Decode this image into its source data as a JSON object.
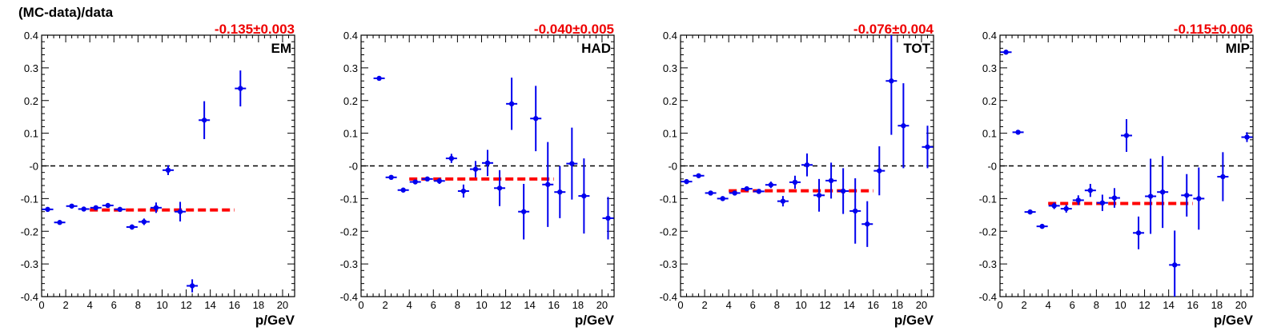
{
  "figure": {
    "ylabel": "(MC-data)/data",
    "xlabel": "p/GeV",
    "xlim": [
      0,
      21
    ],
    "ylim": [
      -0.4,
      0.4
    ],
    "xticks": [
      0,
      2,
      4,
      6,
      8,
      10,
      12,
      14,
      16,
      18,
      20
    ],
    "yticks": [
      -0.4,
      -0.3,
      -0.2,
      -0.1,
      0,
      0.1,
      0.2,
      0.3,
      0.4
    ],
    "ytick_labels": [
      "-0.4",
      "-0.3",
      "-0.2",
      "-0.1",
      "-0",
      "0.1",
      "0.2",
      "0.3",
      "0.4"
    ],
    "colors": {
      "points": "#0000ee",
      "fit": "#ff0000",
      "fit_label": "#ee0000",
      "zero_line": "#000000"
    }
  },
  "chart_data": [
    {
      "type": "scatter",
      "panel_label": "EM",
      "fit_label": "-0.135±0.003",
      "fit": {
        "value": -0.135,
        "x_range": [
          4,
          16
        ]
      },
      "x": [
        0.5,
        1.5,
        2.5,
        3.5,
        4.5,
        5.5,
        6.5,
        7.5,
        8.5,
        9.5,
        10.5,
        11.5,
        12.5,
        13.5,
        16.5
      ],
      "y": [
        -0.133,
        -0.173,
        -0.123,
        -0.132,
        -0.128,
        -0.121,
        -0.133,
        -0.187,
        -0.171,
        -0.128,
        -0.013,
        -0.14,
        -0.367,
        0.14,
        0.237
      ],
      "yerr": [
        0.003,
        0.004,
        0.003,
        0.003,
        0.004,
        0.005,
        0.006,
        0.008,
        0.01,
        0.016,
        0.015,
        0.03,
        0.02,
        0.058,
        0.055
      ]
    },
    {
      "type": "scatter",
      "panel_label": "HAD",
      "fit_label": "-0.040±0.005",
      "fit": {
        "value": -0.04,
        "x_range": [
          4,
          16
        ]
      },
      "x": [
        1.5,
        2.5,
        3.5,
        4.5,
        5.5,
        6.5,
        7.5,
        8.5,
        9.5,
        10.5,
        11.5,
        12.5,
        13.5,
        14.5,
        15.5,
        16.5,
        17.5,
        18.5,
        20.5
      ],
      "y": [
        0.268,
        -0.035,
        -0.074,
        -0.049,
        -0.04,
        -0.046,
        0.023,
        -0.077,
        -0.01,
        0.009,
        -0.068,
        0.19,
        -0.14,
        0.145,
        -0.057,
        -0.08,
        0.007,
        -0.092,
        -0.16
      ],
      "yerr": [
        0.004,
        0.004,
        0.005,
        0.006,
        0.007,
        0.009,
        0.014,
        0.02,
        0.025,
        0.04,
        0.055,
        0.08,
        0.085,
        0.1,
        0.13,
        0.08,
        0.11,
        0.115,
        0.065
      ]
    },
    {
      "type": "scatter",
      "panel_label": "TOT",
      "fit_label": "-0.076±0.004",
      "fit": {
        "value": -0.076,
        "x_range": [
          4,
          16
        ]
      },
      "x": [
        0.5,
        1.5,
        2.5,
        3.5,
        4.5,
        5.5,
        6.5,
        7.5,
        8.5,
        9.5,
        10.5,
        11.5,
        12.5,
        13.5,
        14.5,
        15.5,
        16.5,
        17.5,
        18.5,
        20.5
      ],
      "y": [
        -0.048,
        -0.03,
        -0.083,
        -0.1,
        -0.083,
        -0.07,
        -0.078,
        -0.058,
        -0.108,
        -0.05,
        0.003,
        -0.09,
        -0.045,
        -0.077,
        -0.138,
        -0.178,
        -0.015,
        0.26,
        0.123,
        0.058
      ],
      "yerr": [
        0.003,
        0.003,
        0.004,
        0.004,
        0.005,
        0.006,
        0.007,
        0.01,
        0.016,
        0.02,
        0.035,
        0.05,
        0.055,
        0.07,
        0.1,
        0.07,
        0.075,
        0.165,
        0.13,
        0.065
      ]
    },
    {
      "type": "scatter",
      "panel_label": "MIP",
      "fit_label": "-0.115±0.006",
      "fit": {
        "value": -0.115,
        "x_range": [
          4,
          16
        ]
      },
      "x": [
        0.5,
        1.5,
        2.5,
        3.5,
        4.5,
        5.5,
        6.5,
        7.5,
        8.5,
        9.5,
        10.5,
        11.5,
        12.5,
        13.5,
        14.5,
        15.5,
        16.5,
        18.5,
        20.5
      ],
      "y": [
        0.348,
        0.103,
        -0.141,
        -0.185,
        -0.122,
        -0.131,
        -0.105,
        -0.075,
        -0.113,
        -0.098,
        0.093,
        -0.205,
        -0.093,
        -0.08,
        -0.303,
        -0.09,
        -0.1,
        -0.033,
        0.088
      ],
      "yerr": [
        0.005,
        0.004,
        0.005,
        0.006,
        0.01,
        0.012,
        0.015,
        0.02,
        0.025,
        0.03,
        0.05,
        0.05,
        0.115,
        0.11,
        0.105,
        0.065,
        0.095,
        0.075,
        0.015
      ]
    }
  ]
}
